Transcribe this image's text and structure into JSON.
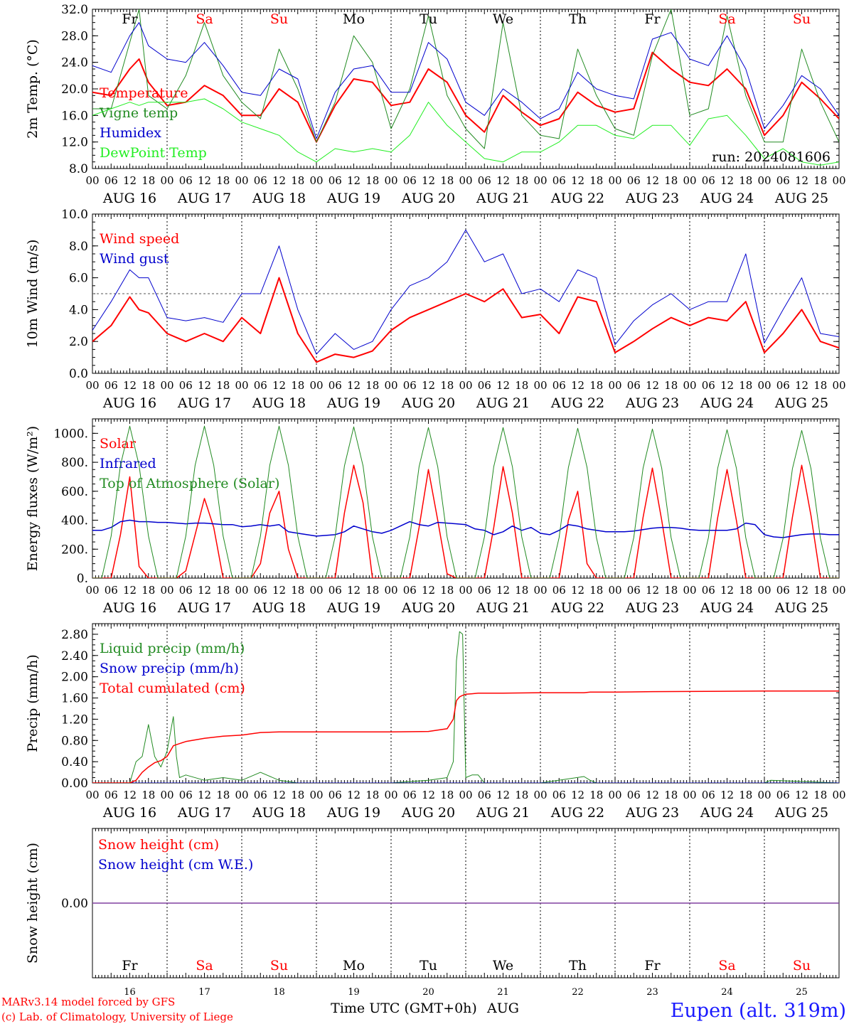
{
  "run_label": "run: 2024081606",
  "footer": {
    "credit_line1": "MARv3.14 model forced by GFS",
    "credit_line2": "(c) Lab. of Climatology, University of Liege",
    "xlabel": "Time UTC (GMT+0h)",
    "month": "AUG",
    "station": "Eupen (alt. 319m)"
  },
  "days": [
    {
      "abbr": "Fr",
      "date": "16",
      "label": "AUG 16",
      "weekend": false
    },
    {
      "abbr": "Sa",
      "date": "17",
      "label": "AUG 17",
      "weekend": true
    },
    {
      "abbr": "Su",
      "date": "18",
      "label": "AUG 18",
      "weekend": true
    },
    {
      "abbr": "Mo",
      "date": "19",
      "label": "AUG 19",
      "weekend": false
    },
    {
      "abbr": "Tu",
      "date": "20",
      "label": "AUG 20",
      "weekend": false
    },
    {
      "abbr": "We",
      "date": "21",
      "label": "AUG 21",
      "weekend": false
    },
    {
      "abbr": "Th",
      "date": "22",
      "label": "AUG 22",
      "weekend": false
    },
    {
      "abbr": "Fr",
      "date": "23",
      "label": "AUG 23",
      "weekend": false
    },
    {
      "abbr": "Sa",
      "date": "24",
      "label": "AUG 24",
      "weekend": true
    },
    {
      "abbr": "Su",
      "date": "25",
      "label": "AUG 25",
      "weekend": true
    }
  ],
  "hour_ticks": [
    "00",
    "06",
    "12",
    "18"
  ],
  "final_tick": "00",
  "chart_data": [
    {
      "type": "line",
      "ylabel": "2m Temp. (°C)",
      "ylim": [
        8,
        32
      ],
      "yticks": [
        "8.0",
        "12.0",
        "16.0",
        "20.0",
        "24.0",
        "28.0",
        "32.0"
      ],
      "x_hours": [
        0,
        6,
        12,
        15,
        18,
        24,
        30,
        36,
        42,
        48,
        54,
        60,
        66,
        72,
        78,
        84,
        90,
        96,
        102,
        108,
        114,
        120,
        126,
        132,
        138,
        144,
        150,
        156,
        162,
        168,
        174,
        180,
        186,
        192,
        198,
        204,
        210,
        216,
        222,
        228,
        234,
        240
      ],
      "series": [
        {
          "name": "Temperature",
          "color": "#ff0000",
          "width": 2,
          "values": [
            19.5,
            19,
            23,
            24.5,
            21,
            17.5,
            18,
            20.5,
            19,
            16,
            16,
            20,
            18,
            12,
            17.5,
            21.5,
            21,
            17.5,
            18,
            23,
            21,
            16,
            13.5,
            19,
            16.5,
            14.5,
            15.5,
            19.5,
            17.5,
            16.5,
            17,
            25.5,
            23,
            21,
            20.5,
            23,
            20,
            13,
            16,
            21,
            18.5,
            15.5
          ]
        },
        {
          "name": "Vigne temp",
          "color": "#228b22",
          "width": 1,
          "values": [
            17,
            17,
            27,
            32,
            19,
            17,
            22,
            30,
            22,
            18,
            15.5,
            26,
            20,
            12,
            18,
            28,
            24,
            14,
            20,
            31,
            19,
            14,
            11,
            30,
            16,
            13,
            12.5,
            26,
            19,
            14,
            13,
            25,
            32,
            16,
            17,
            31,
            19,
            12,
            12,
            26,
            18,
            12
          ]
        },
        {
          "name": "Humidex",
          "color": "#0000cd",
          "width": 1,
          "values": [
            23.5,
            22.5,
            28,
            30,
            26.5,
            24.5,
            24,
            27,
            23.5,
            19.5,
            19,
            23,
            21.5,
            12.5,
            19.5,
            23,
            23.5,
            19.5,
            19.5,
            27,
            24.5,
            18,
            16,
            20,
            18,
            15.5,
            17,
            22.5,
            20,
            19,
            18.5,
            27.5,
            28.5,
            24.5,
            23.5,
            28,
            23,
            14,
            17.5,
            22,
            20,
            16
          ]
        },
        {
          "name": "DewPoint Temp",
          "color": "#22ee22",
          "width": 1,
          "values": [
            16,
            17,
            18,
            17.5,
            18,
            18,
            18,
            18.5,
            17,
            15,
            14,
            13,
            10.5,
            9,
            11,
            10.5,
            11,
            10.5,
            13,
            18,
            14.5,
            12,
            9.5,
            9,
            10.5,
            10.5,
            12,
            14.5,
            14.5,
            13,
            12.5,
            14.5,
            14.5,
            11.5,
            15.5,
            16,
            13,
            9.5,
            11,
            9,
            8.5,
            9
          ]
        }
      ]
    },
    {
      "type": "line",
      "ylabel": "10m Wind (m/s)",
      "ylim": [
        0,
        10
      ],
      "yticks": [
        "0.0",
        "2.0",
        "4.0",
        "6.0",
        "8.0",
        "10.0"
      ],
      "reference_line": 5.0,
      "x_hours": [
        0,
        6,
        12,
        15,
        18,
        24,
        30,
        36,
        42,
        48,
        54,
        60,
        66,
        72,
        78,
        84,
        90,
        96,
        102,
        108,
        114,
        120,
        126,
        132,
        138,
        144,
        150,
        156,
        162,
        168,
        174,
        180,
        186,
        192,
        198,
        204,
        210,
        216,
        222,
        228,
        234,
        240
      ],
      "series": [
        {
          "name": "Wind speed",
          "color": "#ff0000",
          "width": 2,
          "values": [
            2.0,
            3.0,
            4.8,
            4.0,
            3.8,
            2.5,
            2.0,
            2.5,
            2.0,
            3.5,
            2.5,
            6.0,
            2.5,
            0.7,
            1.2,
            1.0,
            1.4,
            2.7,
            3.5,
            4.0,
            4.5,
            5.0,
            4.5,
            5.3,
            3.5,
            3.7,
            2.5,
            4.8,
            4.5,
            1.3,
            2.0,
            2.8,
            3.5,
            3.0,
            3.5,
            3.3,
            4.5,
            1.3,
            2.5,
            4.0,
            2.0,
            1.6
          ]
        },
        {
          "name": "Wind gust",
          "color": "#0000cd",
          "width": 1,
          "values": [
            2.7,
            4.5,
            6.5,
            6.0,
            6.0,
            3.5,
            3.3,
            3.5,
            3.2,
            5.0,
            5.0,
            8.0,
            4.0,
            1.2,
            2.5,
            1.5,
            2.0,
            4.0,
            5.5,
            6.0,
            7.0,
            9.0,
            7.0,
            7.5,
            5.0,
            5.3,
            4.5,
            6.5,
            6.0,
            1.8,
            3.3,
            4.3,
            5.0,
            4.0,
            4.5,
            4.5,
            7.5,
            1.9,
            4.0,
            6.0,
            2.5,
            2.3
          ]
        }
      ]
    },
    {
      "type": "line",
      "ylabel": "Energy fluxes (W/m²)",
      "ylim": [
        0,
        1100
      ],
      "yticks": [
        "0.",
        "200.",
        "400.",
        "600.",
        "800.",
        "1000."
      ],
      "x_hours": [
        0,
        3,
        6,
        9,
        12,
        15,
        18,
        21,
        24,
        27,
        30,
        33,
        36,
        39,
        42,
        45,
        48,
        51,
        54,
        57,
        60,
        63,
        66,
        69,
        72,
        75,
        78,
        81,
        84,
        87,
        90,
        93,
        96,
        99,
        102,
        105,
        108,
        111,
        114,
        117,
        120,
        123,
        126,
        129,
        132,
        135,
        138,
        141,
        144,
        147,
        150,
        153,
        156,
        159,
        162,
        165,
        168,
        171,
        174,
        177,
        180,
        183,
        186,
        189,
        192,
        195,
        198,
        201,
        204,
        207,
        210,
        213,
        216,
        219,
        222,
        225,
        228,
        231,
        234,
        237,
        240
      ],
      "series": [
        {
          "name": "Solar",
          "color": "#ff0000",
          "width": 1.5,
          "values": [
            0,
            0,
            0,
            300,
            700,
            80,
            0,
            0,
            0,
            0,
            50,
            300,
            550,
            350,
            0,
            0,
            0,
            0,
            100,
            450,
            600,
            200,
            0,
            0,
            0,
            0,
            0,
            450,
            780,
            520,
            0,
            0,
            0,
            0,
            0,
            350,
            750,
            400,
            30,
            0,
            0,
            0,
            0,
            350,
            770,
            450,
            0,
            0,
            0,
            0,
            0,
            400,
            600,
            100,
            0,
            0,
            0,
            0,
            0,
            420,
            760,
            400,
            0,
            0,
            0,
            0,
            0,
            420,
            750,
            400,
            0,
            0,
            0,
            0,
            0,
            420,
            780,
            430,
            0,
            0,
            0
          ]
        },
        {
          "name": "Infrared",
          "color": "#0000cd",
          "width": 1.5,
          "values": [
            330,
            330,
            350,
            390,
            400,
            390,
            390,
            385,
            385,
            380,
            375,
            380,
            380,
            375,
            370,
            370,
            355,
            360,
            370,
            360,
            370,
            320,
            310,
            300,
            290,
            295,
            300,
            320,
            360,
            340,
            320,
            310,
            330,
            360,
            390,
            370,
            360,
            385,
            380,
            375,
            370,
            340,
            330,
            300,
            320,
            360,
            330,
            350,
            310,
            300,
            330,
            370,
            360,
            340,
            330,
            320,
            320,
            320,
            325,
            335,
            345,
            350,
            350,
            345,
            335,
            330,
            330,
            330,
            330,
            340,
            380,
            370,
            300,
            285,
            280,
            290,
            300,
            305,
            305,
            300,
            300
          ]
        },
        {
          "name": "Top of Atmosphere (Solar)",
          "color": "#228b22",
          "width": 1,
          "values": [
            0,
            0,
            290,
            780,
            1050,
            780,
            290,
            0,
            0,
            0,
            290,
            780,
            1050,
            780,
            290,
            0,
            0,
            0,
            290,
            780,
            1050,
            780,
            290,
            0,
            0,
            0,
            285,
            775,
            1045,
            775,
            285,
            0,
            0,
            0,
            285,
            770,
            1040,
            770,
            285,
            0,
            0,
            0,
            285,
            770,
            1040,
            770,
            285,
            0,
            0,
            0,
            280,
            765,
            1035,
            765,
            280,
            0,
            0,
            0,
            280,
            760,
            1030,
            760,
            280,
            0,
            0,
            0,
            280,
            760,
            1025,
            760,
            280,
            0,
            0,
            0,
            275,
            755,
            1020,
            755,
            275,
            0,
            0
          ]
        }
      ]
    },
    {
      "type": "line",
      "ylabel": "Precip (mm/h)",
      "ylim": [
        0,
        3.0
      ],
      "yticks": [
        "0.00",
        "0.40",
        "0.80",
        "1.20",
        "1.60",
        "2.00",
        "2.40",
        "2.80"
      ],
      "x_hours": [
        0,
        6,
        12,
        14,
        16,
        18,
        20,
        22,
        24,
        26,
        27,
        28,
        30,
        36,
        42,
        48,
        54,
        60,
        66,
        72,
        96,
        108,
        114,
        116,
        117,
        118,
        119,
        120,
        122,
        124,
        126,
        132,
        144,
        158,
        160,
        162,
        168,
        180,
        216,
        218,
        240
      ],
      "series": [
        {
          "name": "Liquid precip (mm/h)",
          "color": "#228b22",
          "width": 1,
          "values": [
            0,
            0,
            0,
            0.4,
            0.5,
            1.1,
            0.5,
            0.3,
            0.6,
            1.25,
            0.5,
            0.1,
            0.15,
            0.05,
            0.1,
            0.05,
            0.2,
            0.05,
            0,
            0,
            0,
            0.05,
            0.1,
            0.4,
            2.3,
            2.85,
            2.8,
            0.1,
            0.15,
            0.15,
            0,
            0,
            0,
            0.12,
            0.05,
            0,
            0,
            0,
            0,
            0.05,
            0
          ]
        },
        {
          "name": "Snow precip (mm/h)",
          "color": "#0000cd",
          "width": 1,
          "values": [
            0,
            0,
            0,
            0,
            0,
            0,
            0,
            0,
            0,
            0,
            0,
            0,
            0,
            0,
            0,
            0,
            0,
            0,
            0,
            0,
            0,
            0,
            0,
            0,
            0,
            0,
            0,
            0,
            0,
            0,
            0,
            0,
            0,
            0,
            0,
            0,
            0,
            0,
            0,
            0,
            0
          ]
        },
        {
          "name": "Total cumulated (cm)",
          "color": "#ff0000",
          "width": 1.5,
          "values": [
            0,
            0,
            0,
            0.05,
            0.2,
            0.3,
            0.38,
            0.42,
            0.5,
            0.7,
            0.72,
            0.74,
            0.78,
            0.84,
            0.88,
            0.9,
            0.95,
            0.96,
            0.96,
            0.96,
            0.96,
            0.97,
            1.02,
            1.2,
            1.55,
            1.62,
            1.65,
            1.67,
            1.68,
            1.69,
            1.69,
            1.69,
            1.7,
            1.7,
            1.71,
            1.71,
            1.71,
            1.72,
            1.73,
            1.73,
            1.73
          ]
        }
      ]
    },
    {
      "type": "line",
      "ylabel": "Snow height (cm)",
      "ylim": [
        -1,
        1
      ],
      "yticks": [
        "0.00"
      ],
      "x_hours": [
        0,
        240
      ],
      "series": [
        {
          "name": "Snow height (cm)",
          "color": "#ff0000",
          "width": 1,
          "values": [
            0,
            0
          ]
        },
        {
          "name": "Snow height (cm W.E.)",
          "color": "#0000cd",
          "width": 1,
          "values": [
            0,
            0
          ]
        }
      ]
    }
  ]
}
